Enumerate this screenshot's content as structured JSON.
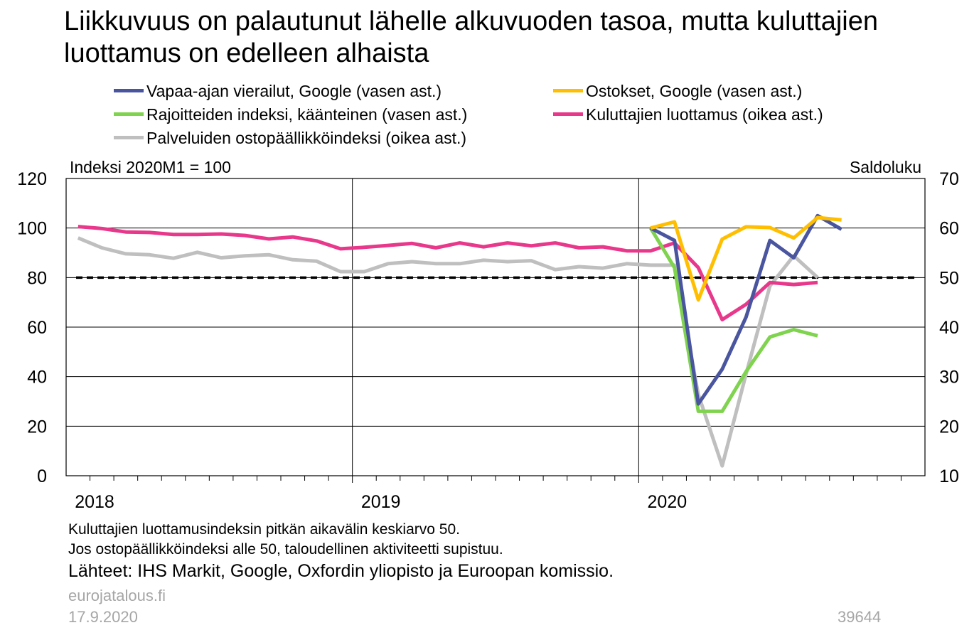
{
  "title": "Liikkuvuus on palautunut lähelle alkuvuoden tasoa, mutta kuluttajien luottamus on edelleen alhaista",
  "legend": [
    {
      "label": "Vapaa-ajan vierailut, Google (vasen ast.)",
      "color": "#4a559f"
    },
    {
      "label": "Ostokset, Google (vasen ast.)",
      "color": "#ffbf00"
    },
    {
      "label": "Rajoitteiden indeksi, käänteinen (vasen ast.)",
      "color": "#7fd34e"
    },
    {
      "label": "Kuluttajien luottamus (oikea ast.)",
      "color": "#e8388b"
    },
    {
      "label": "Palveluiden ostopäällikköindeksi (oikea ast.)",
      "color": "#bfbfbf"
    }
  ],
  "footer": {
    "note1": "Kuluttajien luottamusindeksin pitkän aikavälin keskiarvo 50.",
    "note2": "Jos ostopäällikköindeksi alle 50, taloudellinen aktiviteetti supistuu.",
    "source": "Lähteet: IHS Markit, Google, Oxfordin yliopisto ja Euroopan komissio.",
    "site": "eurojatalous.fi",
    "date": "17.9.2020",
    "id": "39644"
  },
  "chart_data": {
    "type": "line",
    "left_axis_label": "Indeksi 2020M1 = 100",
    "right_axis_label": "Saldoluku",
    "left_ylim": [
      0,
      120
    ],
    "left_ticks": [
      "0",
      "20",
      "40",
      "60",
      "80",
      "100",
      "120"
    ],
    "right_ylim": [
      10,
      70
    ],
    "right_ticks": [
      "10",
      "20",
      "30",
      "40",
      "50",
      "60",
      "70"
    ],
    "x_range": [
      "2018-01",
      "2020-12"
    ],
    "x_tick_labels": [
      "2018",
      "2019",
      "2020"
    ],
    "grid": true,
    "reference_line": {
      "axis": "right",
      "value": 50,
      "style": "dashed"
    },
    "series": [
      {
        "name": "Palveluiden ostopäällikköindeksi (oikea ast.)",
        "axis": "right",
        "color": "#bfbfbf",
        "x": [
          "2018-01",
          "2018-02",
          "2018-03",
          "2018-04",
          "2018-05",
          "2018-06",
          "2018-07",
          "2018-08",
          "2018-09",
          "2018-10",
          "2018-11",
          "2018-12",
          "2019-01",
          "2019-02",
          "2019-03",
          "2019-04",
          "2019-05",
          "2019-06",
          "2019-07",
          "2019-08",
          "2019-09",
          "2019-10",
          "2019-11",
          "2019-12",
          "2020-01",
          "2020-02",
          "2020-03",
          "2020-04",
          "2020-05",
          "2020-06",
          "2020-07",
          "2020-08"
        ],
        "values": [
          58,
          56,
          54.8,
          54.6,
          53.9,
          55.1,
          54,
          54.4,
          54.6,
          53.6,
          53.3,
          51.2,
          51.2,
          52.8,
          53.2,
          52.8,
          52.8,
          53.5,
          53.2,
          53.4,
          51.6,
          52.2,
          51.9,
          52.8,
          52.5,
          52.5,
          26.4,
          12,
          30.5,
          48.3,
          54.4,
          50
        ]
      },
      {
        "name": "Kuluttajien luottamus (oikea ast.)",
        "axis": "right",
        "color": "#e8388b",
        "x": [
          "2018-01",
          "2018-02",
          "2018-03",
          "2018-04",
          "2018-05",
          "2018-06",
          "2018-07",
          "2018-08",
          "2018-09",
          "2018-10",
          "2018-11",
          "2018-12",
          "2019-01",
          "2019-02",
          "2019-03",
          "2019-04",
          "2019-05",
          "2019-06",
          "2019-07",
          "2019-08",
          "2019-09",
          "2019-10",
          "2019-11",
          "2019-12",
          "2020-01",
          "2020-02",
          "2020-03",
          "2020-04",
          "2020-05",
          "2020-06",
          "2020-07",
          "2020-08"
        ],
        "values": [
          60.3,
          59.9,
          59.2,
          59.1,
          58.7,
          58.7,
          58.8,
          58.5,
          57.8,
          58.2,
          57.4,
          55.8,
          56.1,
          56.5,
          56.9,
          56,
          57,
          56.2,
          57,
          56.4,
          57,
          56,
          56.2,
          55.4,
          55.4,
          57,
          52,
          41.5,
          44.6,
          49,
          48.6,
          49
        ]
      },
      {
        "name": "Rajoitteiden indeksi, käänteinen (vasen ast.)",
        "axis": "left",
        "color": "#7fd34e",
        "x": [
          "2020-01",
          "2020-02",
          "2020-03",
          "2020-04",
          "2020-05",
          "2020-06",
          "2020-07",
          "2020-08"
        ],
        "values": [
          100,
          84,
          26,
          26,
          42,
          56,
          59,
          56.5
        ]
      },
      {
        "name": "Vapaa-ajan vierailut, Google (vasen ast.)",
        "axis": "left",
        "color": "#4a559f",
        "x": [
          "2020-01",
          "2020-02",
          "2020-03",
          "2020-04",
          "2020-05",
          "2020-06",
          "2020-07",
          "2020-08",
          "2020-09"
        ],
        "values": [
          100,
          95,
          29,
          43,
          64,
          95,
          88,
          105,
          99.5
        ]
      },
      {
        "name": "Ostokset, Google (vasen ast.)",
        "axis": "left",
        "color": "#ffbf00",
        "x": [
          "2020-01",
          "2020-02",
          "2020-03",
          "2020-04",
          "2020-05",
          "2020-06",
          "2020-07",
          "2020-08",
          "2020-09"
        ],
        "values": [
          100,
          102.5,
          71,
          95.5,
          100.5,
          100.2,
          96,
          104.2,
          103.3
        ]
      }
    ]
  }
}
